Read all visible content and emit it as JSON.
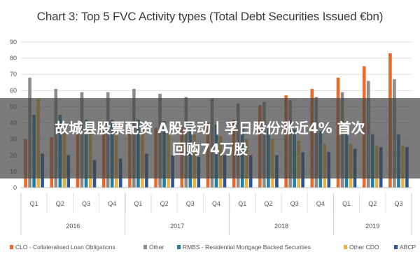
{
  "chart_data": {
    "type": "bar",
    "title": "Chart 3: Top 5 FVC Activity types (Total Debt Securities Issued €bn)",
    "xlabel": "",
    "ylabel": "",
    "ylim": [
      0,
      90
    ],
    "yticks": [
      0,
      10,
      20,
      30,
      40,
      50,
      60,
      70,
      80,
      90
    ],
    "grid": true,
    "legend_position": "bottom",
    "categories": [
      "Q1",
      "Q2",
      "Q3",
      "Q4",
      "Q1",
      "Q2",
      "Q3",
      "Q4",
      "Q1",
      "Q2",
      "Q3",
      "Q4",
      "Q1",
      "Q2",
      "Q3"
    ],
    "years": [
      {
        "label": "2016",
        "span": 4
      },
      {
        "label": "2017",
        "span": 4
      },
      {
        "label": "2018",
        "span": 4
      },
      {
        "label": "2019",
        "span": 3
      }
    ],
    "series": [
      {
        "name": "CLO - Collateralised Loan Obligations",
        "color": "#E8692C",
        "values": [
          30,
          31,
          33,
          35,
          36,
          37,
          38,
          40,
          42,
          51,
          57,
          61,
          68,
          75,
          83
        ]
      },
      {
        "name": "Other",
        "color": "#8C8C8C",
        "values": [
          68,
          61,
          59,
          59,
          61,
          58,
          56,
          55,
          52,
          53,
          54,
          56,
          59,
          66,
          67
        ]
      },
      {
        "name": "RMBS - Residential Mortgage Backed Securities",
        "color": "#1F7FA6",
        "values": [
          45,
          45,
          42,
          42,
          42,
          41,
          40,
          39,
          38,
          37,
          36,
          35,
          34,
          33,
          33
        ]
      },
      {
        "name": "Other CDO",
        "color": "#E8B23A",
        "values": [
          55,
          38,
          37,
          36,
          36,
          34,
          33,
          32,
          30,
          30,
          29,
          27,
          27,
          26,
          26
        ]
      },
      {
        "name": "ABCP",
        "color": "#2A5699",
        "values": [
          21,
          20,
          17,
          18,
          21,
          20,
          19,
          20,
          20,
          20,
          22,
          22,
          24,
          25,
          25
        ]
      }
    ]
  },
  "overlay": {
    "line1": "故城县股票配资 A股异动丨孚日股份涨近4% 首次",
    "line2": "回购74万股"
  }
}
